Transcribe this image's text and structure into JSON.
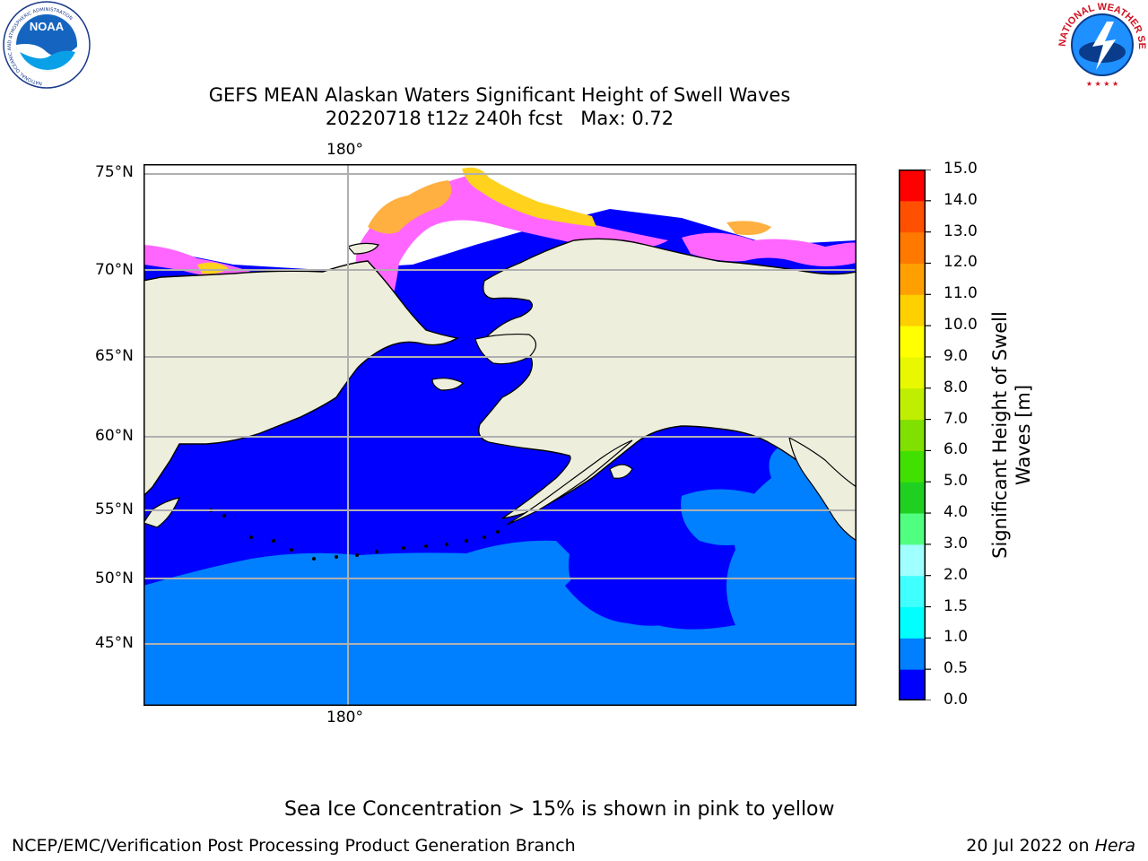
{
  "title": {
    "line1": "GEFS MEAN Alaskan Waters Significant Height of Swell Waves",
    "line2": "20220718 t12z 240h fcst   Max: 0.72"
  },
  "map": {
    "lon_label_top": "180°",
    "lon_label_bottom": "180°",
    "lat_labels": [
      "75°N",
      "70°N",
      "65°N",
      "60°N",
      "55°N",
      "50°N",
      "45°N"
    ],
    "colors": {
      "land": "#eeeedd",
      "ocean_low": "#0000ff",
      "ocean_mid": "#0080ff",
      "ice_pink": "#ff66ff",
      "ice_orange": "#ffb040",
      "ice_yellow": "#ffd21e"
    }
  },
  "colorbar": {
    "label_line1": "Significant Height of Swell",
    "label_line2": "Waves [m]",
    "ticks": [
      "0.0",
      "0.5",
      "1.0",
      "1.5",
      "2.0",
      "3.0",
      "4.0",
      "5.0",
      "6.0",
      "7.0",
      "8.0",
      "9.0",
      "10.0",
      "11.0",
      "12.0",
      "13.0",
      "14.0",
      "15.0"
    ],
    "colors": [
      "#0000ff",
      "#0080ff",
      "#00ffff",
      "#40ffff",
      "#a0ffff",
      "#50ff80",
      "#20d020",
      "#40e000",
      "#80e000",
      "#c0ee00",
      "#e8f800",
      "#ffff00",
      "#ffd000",
      "#ffa000",
      "#ff7800",
      "#ff5000",
      "#ff0000"
    ]
  },
  "note": "Sea Ice Concentration > 15% is shown in pink to yellow",
  "footer": {
    "left": "NCEP/EMC/Verification Post Processing Product Generation Branch",
    "date": "20 Jul 2022 on ",
    "machine": "Hera"
  },
  "logos": {
    "noaa_text": "NOAA",
    "noaa_ring": "NATIONAL OCEANIC AND ATMOSPHERIC ADMINISTRATION",
    "noaa_ring_bottom": "U.S. DEPARTMENT OF COMMERCE",
    "nws_ring": "NATIONAL WEATHER SERVICE"
  }
}
